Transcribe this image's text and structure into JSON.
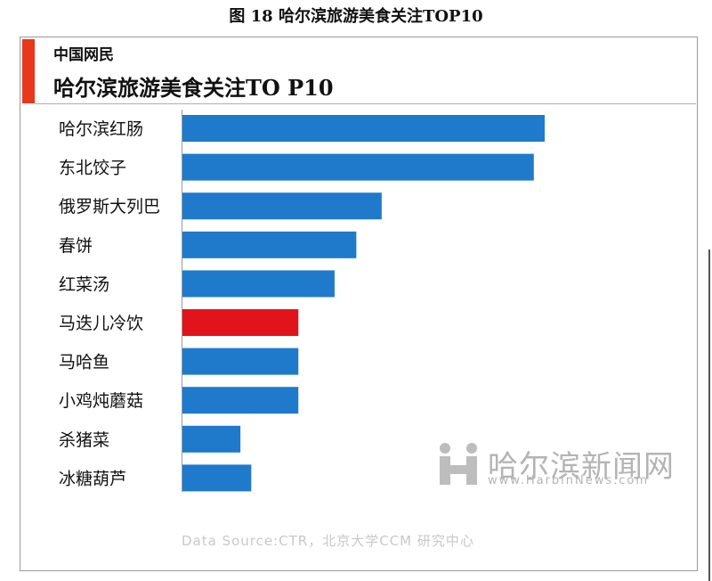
{
  "figure_caption": "图 18 哈尔滨旅游美食关注TOP10",
  "header": {
    "brand": "中国网民",
    "title": "哈尔滨旅游美食关注TO P10"
  },
  "source_note": "Data Source:CTR，北京大学CCM 研究中心",
  "watermark": {
    "name_cn": "哈尔滨新闻网",
    "url": "www.HarbinNews.com"
  },
  "colors": {
    "bar": "#1f7acb",
    "highlight": "#e0141a",
    "accent": "#e8381c"
  },
  "chart_data": {
    "type": "bar",
    "orientation": "horizontal",
    "categories": [
      "哈尔滨红肠",
      "东北饺子",
      "俄罗斯大列巴",
      "春饼",
      "红菜汤",
      "马迭儿冷饮",
      "马哈鱼",
      "小鸡炖蘑菇",
      "杀猪菜",
      "冰糖葫芦"
    ],
    "values": [
      100,
      97,
      55,
      48,
      42,
      32,
      32,
      32,
      16,
      19
    ],
    "highlight_index": 5,
    "xlim": [
      0,
      100
    ],
    "grid": false,
    "legend": false
  }
}
